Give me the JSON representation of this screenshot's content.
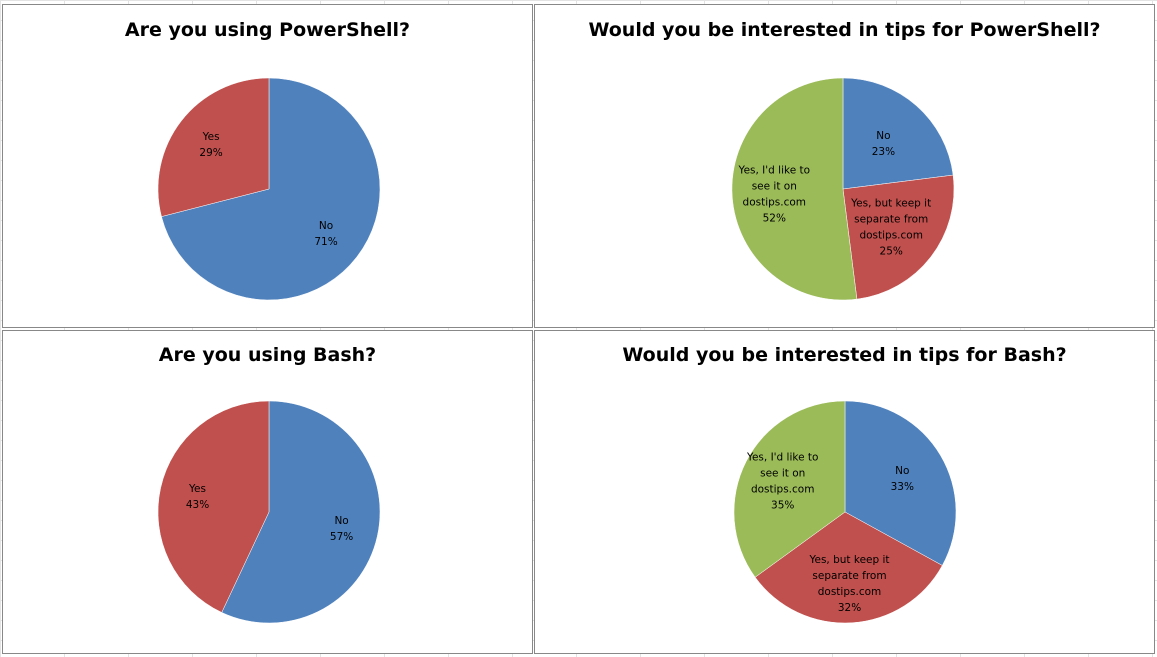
{
  "chart_data": [
    {
      "type": "pie",
      "title": "Are you using PowerShell?",
      "slices": [
        {
          "category": "No",
          "value": 71,
          "label": "No\n71%",
          "color": "#4f81bd"
        },
        {
          "category": "Yes",
          "value": 29,
          "label": "Yes\n29%",
          "color": "#c0504d"
        }
      ]
    },
    {
      "type": "pie",
      "title": "Would you be interested in tips for PowerShell?",
      "slices": [
        {
          "category": "No",
          "value": 23,
          "label": "No\n23%",
          "color": "#4f81bd"
        },
        {
          "category": "Yes, but keep it separate from dostips.com",
          "value": 25,
          "label": "Yes, but keep  it\nseparate from\ndostips.com\n25%",
          "color": "#c0504d"
        },
        {
          "category": "Yes, I'd like to see it on dostips.com",
          "value": 52,
          "label": "Yes, I'd like to\nsee it on\ndostips.com\n52%",
          "color": "#9bbb59"
        }
      ]
    },
    {
      "type": "pie",
      "title": "Are you using Bash?",
      "slices": [
        {
          "category": "No",
          "value": 57,
          "label": "No\n57%",
          "color": "#4f81bd"
        },
        {
          "category": "Yes",
          "value": 43,
          "label": "Yes\n43%",
          "color": "#c0504d"
        }
      ]
    },
    {
      "type": "pie",
      "title": "Would you be interested in tips for Bash?",
      "slices": [
        {
          "category": "No",
          "value": 33,
          "label": "No\n33%",
          "color": "#4f81bd"
        },
        {
          "category": "Yes, but keep it separate from dostips.com",
          "value": 32,
          "label": "Yes, but keep  it\nseparate from\ndostips.com\n32%",
          "color": "#c0504d"
        },
        {
          "category": "Yes, I'd like to see it on dostips.com",
          "value": 35,
          "label": "Yes, I'd like to\nsee it on\ndostips.com\n35%",
          "color": "#9bbb59"
        }
      ]
    }
  ]
}
